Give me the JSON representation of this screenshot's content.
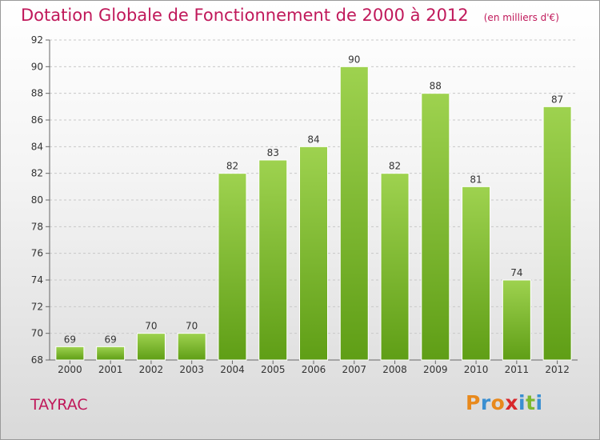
{
  "header": {
    "title": "Dotation Globale de Fonctionnement de 2000 à 2012",
    "unit": "(en milliers d'€)"
  },
  "footer": {
    "commune": "TAYRAC",
    "logo": "Proxiti",
    "logo_colors": [
      "#e8891c",
      "#3a8fd1",
      "#e8891c",
      "#d8282c",
      "#3a8fd1",
      "#7cb82f",
      "#3a8fd1"
    ]
  },
  "colors": {
    "title": "#c0185a",
    "bar_top": "#9ed24f",
    "bar_bottom": "#5f9e16",
    "grid": "#c8c8c8"
  },
  "chart_data": {
    "type": "bar",
    "title": "Dotation Globale de Fonctionnement de 2000 à 2012",
    "subtitle": "(en milliers d'€)",
    "categories": [
      "2000",
      "2001",
      "2002",
      "2003",
      "2004",
      "2005",
      "2006",
      "2007",
      "2008",
      "2009",
      "2010",
      "2011",
      "2012"
    ],
    "values": [
      69,
      69,
      70,
      70,
      82,
      83,
      84,
      90,
      82,
      88,
      81,
      74,
      87
    ],
    "ylim": [
      68,
      92
    ],
    "yticks": [
      68,
      70,
      72,
      74,
      76,
      78,
      80,
      82,
      84,
      86,
      88,
      90,
      92
    ],
    "xlabel": "",
    "ylabel": "",
    "grid": true,
    "data_labels": true
  }
}
